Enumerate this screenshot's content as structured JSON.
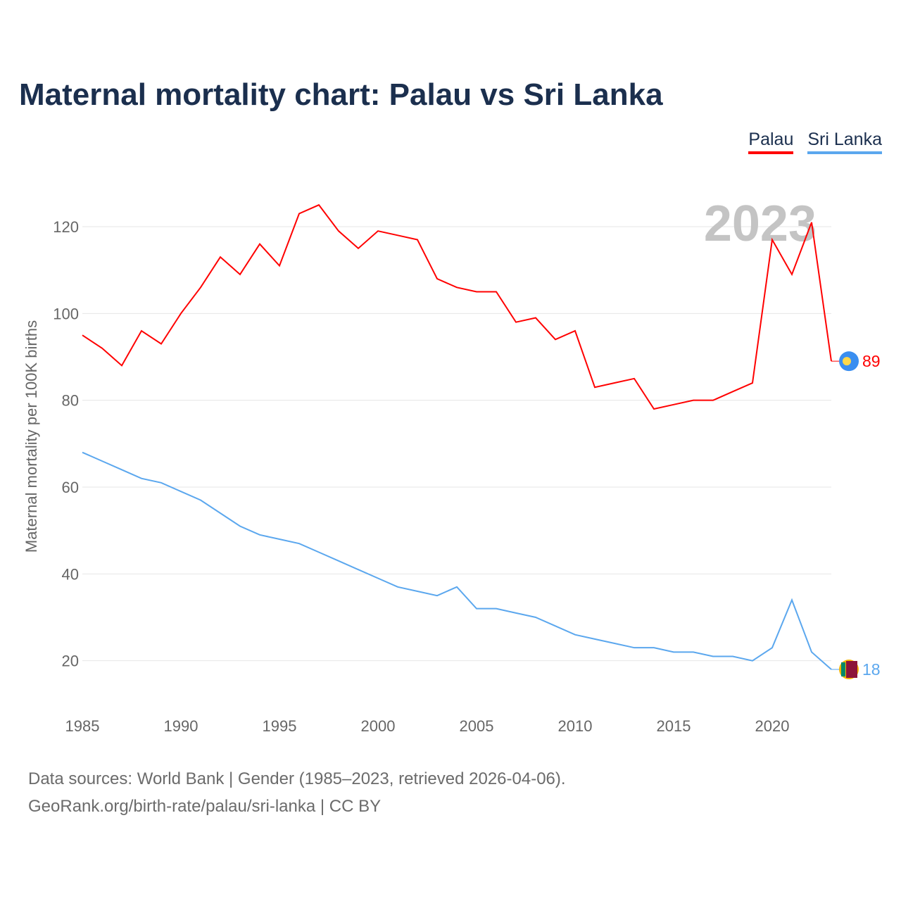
{
  "chart_data": {
    "type": "line",
    "title": "Maternal mortality chart: Palau vs Sri Lanka",
    "ylabel": "Maternal mortality per 100K births",
    "xlabel": "",
    "year_label": "2023",
    "xlim": [
      1985,
      2023
    ],
    "ylim": [
      10,
      130
    ],
    "yticks": [
      20,
      40,
      60,
      80,
      100,
      120
    ],
    "xticks": [
      1985,
      1990,
      1995,
      2000,
      2005,
      2010,
      2015,
      2020
    ],
    "grid": true,
    "legend_placement": "top-right",
    "x": [
      1985,
      1986,
      1987,
      1988,
      1989,
      1990,
      1991,
      1992,
      1993,
      1994,
      1995,
      1996,
      1997,
      1998,
      1999,
      2000,
      2001,
      2002,
      2003,
      2004,
      2005,
      2006,
      2007,
      2008,
      2009,
      2010,
      2011,
      2012,
      2013,
      2014,
      2015,
      2016,
      2017,
      2018,
      2019,
      2020,
      2021,
      2022,
      2023
    ],
    "series": [
      {
        "name": "Palau",
        "color": "#ff0000",
        "end_label": "89",
        "values": [
          95,
          92,
          88,
          96,
          93,
          100,
          106,
          113,
          109,
          116,
          111,
          123,
          125,
          119,
          115,
          119,
          118,
          117,
          108,
          106,
          105,
          105,
          98,
          99,
          94,
          96,
          83,
          84,
          85,
          78,
          79,
          80,
          80,
          82,
          84,
          117,
          109,
          121,
          89
        ]
      },
      {
        "name": "Sri Lanka",
        "color": "#5ba7ee",
        "end_label": "18",
        "values": [
          68,
          66,
          64,
          62,
          61,
          59,
          57,
          54,
          51,
          49,
          48,
          47,
          45,
          43,
          41,
          39,
          37,
          36,
          35,
          37,
          32,
          32,
          31,
          30,
          28,
          26,
          25,
          24,
          23,
          23,
          22,
          22,
          21,
          21,
          20,
          23,
          34,
          22,
          18
        ]
      }
    ]
  },
  "footer": {
    "line1": "Data sources: World Bank | Gender (1985–2023, retrieved 2026-04-06).",
    "line2": "GeoRank.org/birth-rate/palau/sri-lanka | CC BY"
  }
}
